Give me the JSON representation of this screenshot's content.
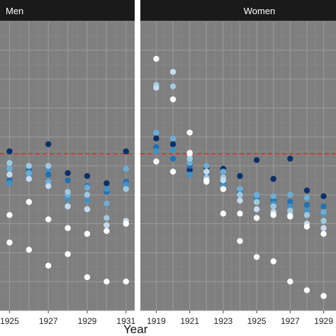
{
  "chart_data": [
    {
      "type": "scatter",
      "panel": "Men",
      "title": "Men",
      "xlabel": "Year",
      "ylabel": "",
      "xlim": [
        1924.4,
        1931.3
      ],
      "ylim": [
        0,
        100
      ],
      "x_ticks": [
        1925,
        1927,
        1929,
        1931
      ],
      "x_tick_labels": [
        "1925",
        "1927",
        "1929",
        "1931"
      ],
      "grid": true,
      "reference_line": {
        "y": 54.2,
        "color": "#e8262b",
        "style": "dashed"
      },
      "colors": [
        "#ffffff",
        "#c6dbef",
        "#9ecae1",
        "#6baed6",
        "#4292c6",
        "#2171b5",
        "#08306b"
      ],
      "series": [
        {
          "color": "#08306b",
          "x": [
            1925,
            1927,
            1928,
            1929,
            1930,
            1931
          ],
          "y": [
            55,
            57.5,
            47.5,
            46.5,
            44,
            55
          ]
        },
        {
          "color": "#2171b5",
          "x": [
            1925,
            1926,
            1927,
            1928,
            1929,
            1930,
            1931
          ],
          "y": [
            45,
            48.5,
            47,
            45,
            43,
            41,
            44.5
          ]
        },
        {
          "color": "#4292c6",
          "x": [
            1925,
            1926,
            1927,
            1928,
            1929,
            1930,
            1931
          ],
          "y": [
            44,
            46.5,
            49,
            38.5,
            38,
            42,
            43.5
          ]
        },
        {
          "color": "#6baed6",
          "x": [
            1925,
            1926,
            1927,
            1928,
            1929,
            1930,
            1931
          ],
          "y": [
            49,
            47.5,
            44.5,
            40,
            42.5,
            37,
            49
          ]
        },
        {
          "color": "#9ecae1",
          "x": [
            1925,
            1926,
            1927,
            1928,
            1929,
            1930,
            1931
          ],
          "y": [
            51,
            50,
            50,
            41,
            40,
            32,
            42
          ]
        },
        {
          "color": "#c6dbef",
          "x": [
            1925,
            1926,
            1927,
            1928,
            1929,
            1930,
            1931
          ],
          "y": [
            47,
            45.5,
            43,
            36,
            35,
            29.5,
            31
          ]
        },
        {
          "color": "#ffffff",
          "x": [
            1925,
            1926,
            1927,
            1928,
            1929,
            1930,
            1931
          ],
          "y": [
            33,
            37.5,
            31.5,
            28.5,
            26.5,
            27.5,
            30
          ]
        },
        {
          "color": "#ffffff",
          "x": [
            1925,
            1926,
            1927,
            1928,
            1929,
            1930,
            1931
          ],
          "y": [
            23.5,
            21,
            15.5,
            19.5,
            11.5,
            10,
            10
          ]
        }
      ]
    },
    {
      "type": "scatter",
      "panel": "Women",
      "title": "Women",
      "xlabel": "Year",
      "ylabel": "",
      "xlim": [
        1918.6,
        1929.4
      ],
      "ylim": [
        0,
        100
      ],
      "x_ticks": [
        1919,
        1921,
        1923,
        1925,
        1927,
        1929
      ],
      "x_tick_labels": [
        "1919",
        "1921",
        "1923",
        "1925",
        "1927",
        "1929"
      ],
      "grid": true,
      "reference_line": {
        "y": 54.2,
        "color": "#e8262b",
        "style": "dashed"
      },
      "colors": [
        "#ffffff",
        "#c6dbef",
        "#9ecae1",
        "#6baed6",
        "#4292c6",
        "#2171b5",
        "#08306b"
      ],
      "series": [
        {
          "color": "#08306b",
          "x": [
            1919,
            1920,
            1921,
            1922,
            1923,
            1924,
            1925,
            1926,
            1927,
            1928,
            1929
          ],
          "y": [
            59.5,
            57.5,
            48.5,
            49.5,
            49,
            46.5,
            52,
            45.5,
            52.5,
            41.5,
            39.5
          ]
        },
        {
          "color": "#2171b5",
          "x": [
            1919,
            1920,
            1921,
            1922,
            1923,
            1924,
            1925,
            1926,
            1927,
            1928,
            1929
          ],
          "y": [
            56.5,
            52.5,
            50,
            47,
            44,
            41,
            39,
            38,
            37.5,
            36.5,
            36
          ]
        },
        {
          "color": "#4292c6",
          "x": [
            1919,
            1920,
            1921,
            1922,
            1923,
            1924,
            1925,
            1926,
            1927,
            1928,
            1929
          ],
          "y": [
            55,
            55.5,
            47,
            44.5,
            43,
            40,
            39.5,
            37,
            36,
            34.5,
            33.5
          ]
        },
        {
          "color": "#6baed6",
          "x": [
            1919,
            1920,
            1921,
            1922,
            1923,
            1924,
            1925,
            1926,
            1927,
            1928,
            1929
          ],
          "y": [
            61.5,
            59.5,
            51,
            50,
            48,
            42,
            40,
            39.5,
            40,
            39,
            34
          ]
        },
        {
          "color": "#9ecae1",
          "x": [
            1919,
            1920,
            1921,
            1922,
            1923,
            1924,
            1925,
            1926,
            1927,
            1928,
            1929
          ],
          "y": [
            78,
            77.5,
            52.5,
            46,
            46,
            40,
            37.5,
            36,
            34.5,
            33,
            31
          ]
        },
        {
          "color": "#c6dbef",
          "x": [
            1919,
            1920,
            1921,
            1922,
            1923,
            1924,
            1925,
            1926,
            1927,
            1928,
            1929
          ],
          "y": [
            77,
            82.5,
            54,
            48,
            45,
            38,
            35,
            34,
            33,
            30,
            28.5
          ]
        },
        {
          "color": "#ffffff",
          "x": [
            1919,
            1920,
            1921,
            1922,
            1923,
            1924,
            1925,
            1926,
            1927,
            1928,
            1929
          ],
          "y": [
            87,
            73,
            61.5,
            44.5,
            33.5,
            33.5,
            32,
            33,
            32.5,
            29,
            26.5
          ]
        },
        {
          "color": "#ffffff",
          "x": [
            1919,
            1920,
            1921,
            1922,
            1923,
            1924,
            1925,
            1926,
            1927,
            1928,
            1929
          ],
          "y": [
            51.5,
            48,
            54.5,
            45,
            42,
            24,
            18.5,
            17,
            10,
            7,
            5
          ]
        }
      ]
    }
  ]
}
